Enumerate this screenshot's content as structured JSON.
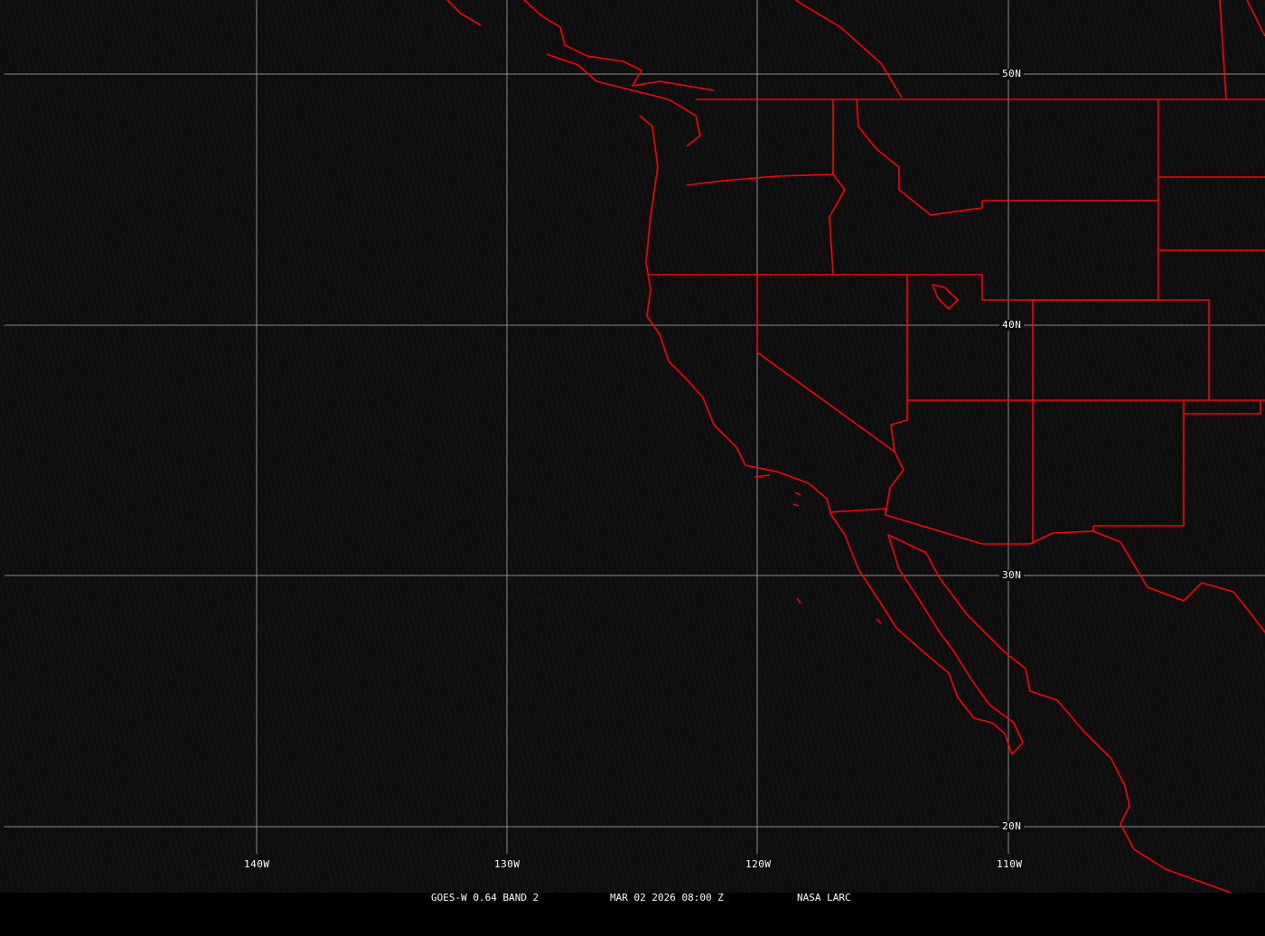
{
  "map": {
    "projection": "lat-lon",
    "grid_color": "#8c8c8c",
    "boundary_color": "#ff0000",
    "lon_labels": [
      "140W",
      "130W",
      "120W",
      "110W"
    ],
    "lat_labels": [
      "50N",
      "40N",
      "30N",
      "20N"
    ]
  },
  "caption": {
    "product": "GOES-W 0.64 BAND 2",
    "datetime": "MAR 02 2026 08:00 Z",
    "source": "NASA LARC"
  }
}
